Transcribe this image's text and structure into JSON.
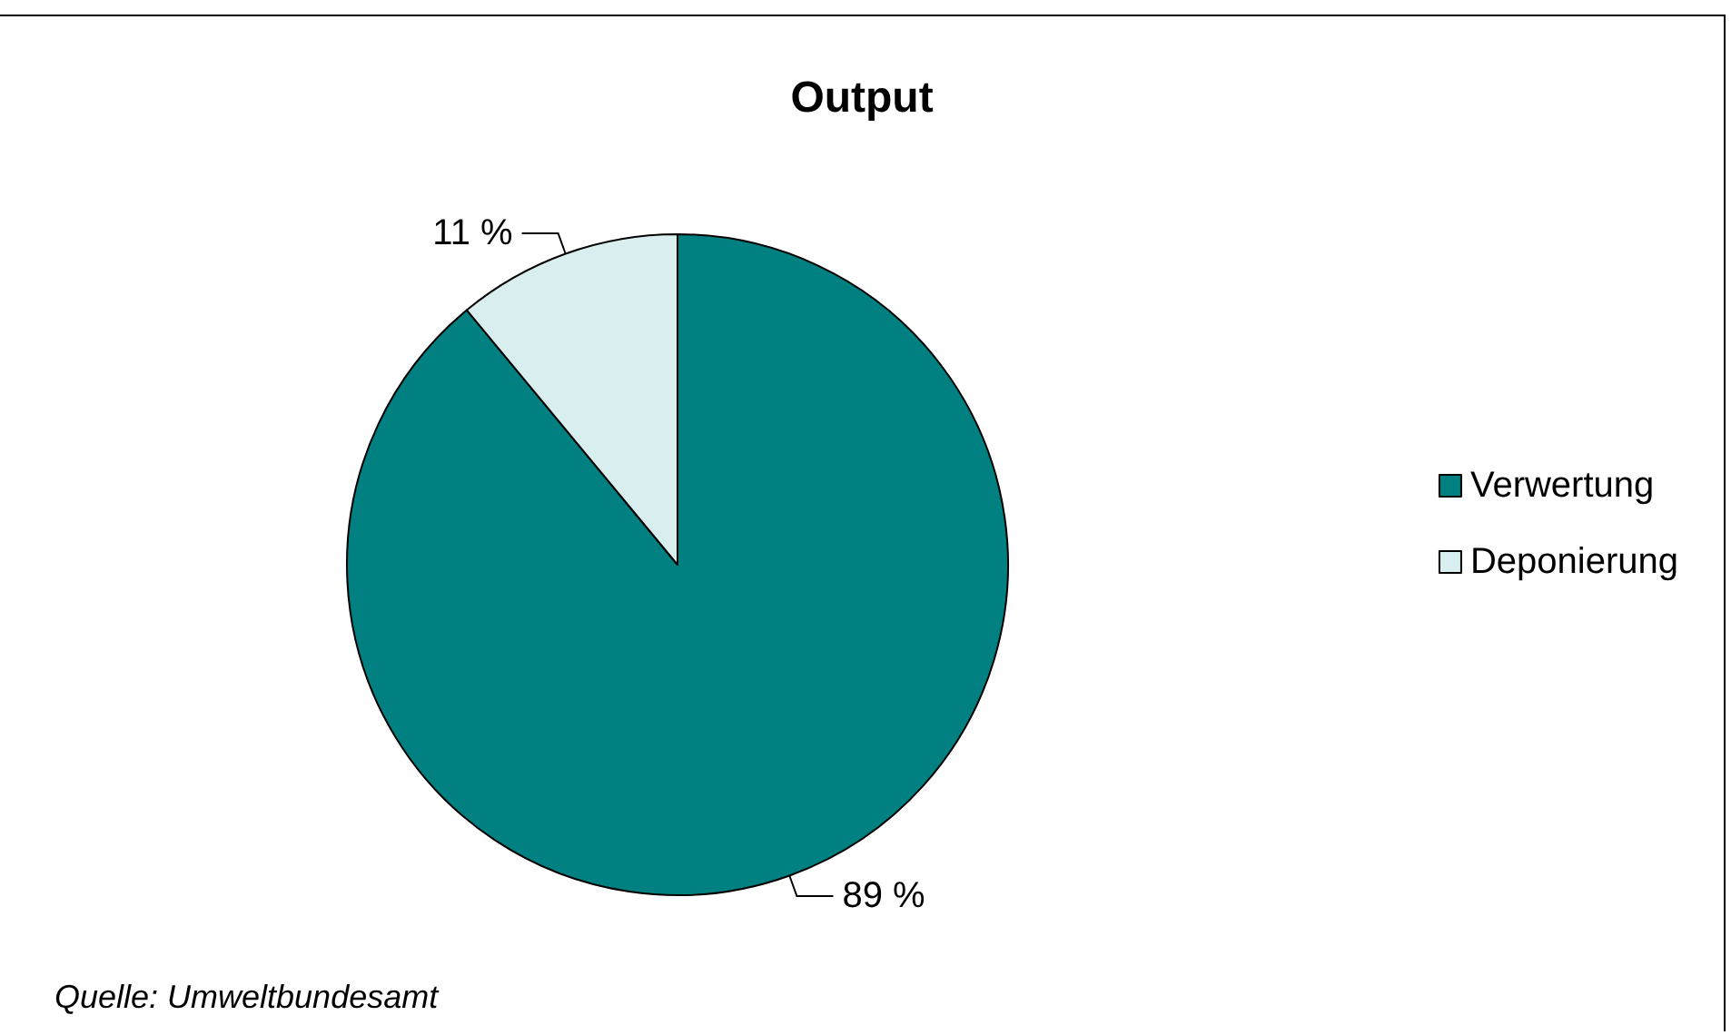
{
  "chart_data": {
    "type": "pie",
    "title": "Output",
    "categories": [
      "Verwertung",
      "Deponierung"
    ],
    "values": [
      89,
      11
    ],
    "colors": [
      "#008080",
      "#d9efef"
    ],
    "value_labels": [
      "89 %",
      "11 %"
    ],
    "legend": "right",
    "annotations": [
      "Quelle: Umweltbundesamt"
    ]
  }
}
